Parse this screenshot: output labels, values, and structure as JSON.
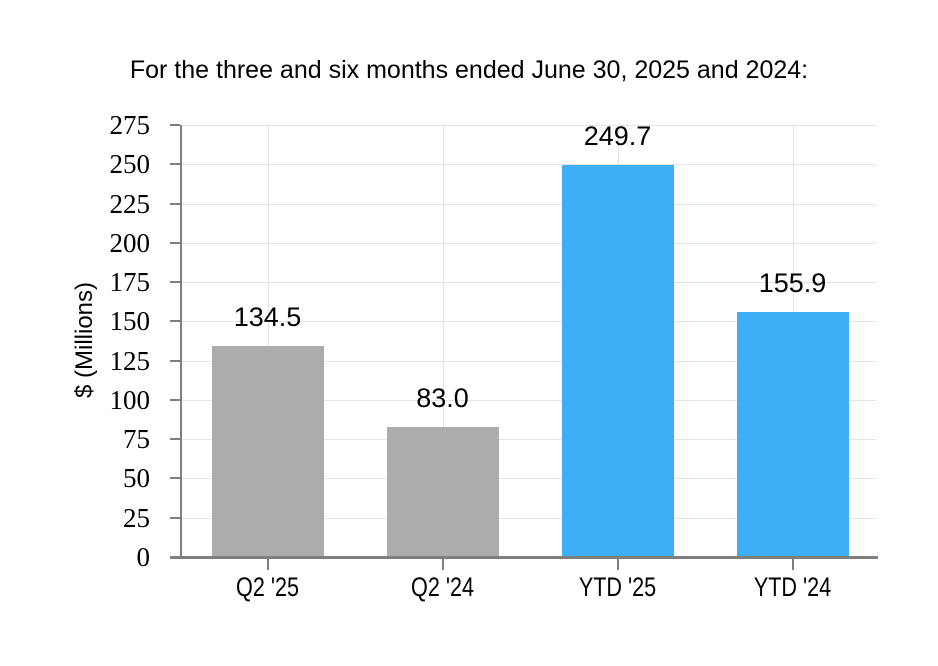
{
  "chart_data": {
    "type": "bar",
    "title": "For the three and six months ended June 30, 2025 and 2024:",
    "xlabel": "",
    "ylabel": "$ (Millions)",
    "categories": [
      "Q2 '25",
      "Q2 '24",
      "YTD '25",
      "YTD '24"
    ],
    "values": [
      134.5,
      83.0,
      249.7,
      155.9
    ],
    "value_labels": [
      "134.5",
      "83.0",
      "249.7",
      "155.9"
    ],
    "bar_colors": [
      "#ACACAC",
      "#ACACAC",
      "#3EAEF6",
      "#3EAEF6"
    ],
    "ylim": [
      0,
      275
    ],
    "y_tick_step": 25,
    "y_ticks": [
      0,
      25,
      50,
      75,
      100,
      125,
      150,
      175,
      200,
      225,
      250,
      275
    ],
    "grid": "both",
    "legend": "none",
    "colors": {
      "gray_bar": "#ACACAC",
      "blue_bar": "#3EAEF6",
      "axis": "#7F7F7F",
      "gridline": "#E4E4E4",
      "text": "#000000",
      "background": "#FFFFFF"
    }
  }
}
